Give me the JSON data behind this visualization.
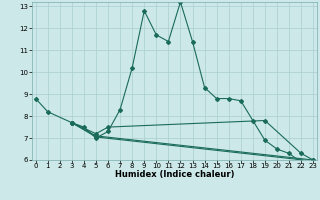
{
  "xlabel": "Humidex (Indice chaleur)",
  "bg_color": "#cce8e8",
  "grid_color": "#aacece",
  "line_color": "#1a6b5a",
  "series1_x": [
    0,
    1,
    3,
    4,
    5,
    6,
    7,
    8,
    9,
    10,
    11,
    12,
    13,
    14,
    15,
    16,
    17,
    18,
    19,
    20,
    21,
    22,
    23
  ],
  "series1_y": [
    8.8,
    8.2,
    7.7,
    7.5,
    7.0,
    7.3,
    8.3,
    10.2,
    12.8,
    11.7,
    11.4,
    13.2,
    11.4,
    9.3,
    8.8,
    8.8,
    8.7,
    7.8,
    6.9,
    6.5,
    6.3,
    5.9,
    5.9
  ],
  "series2_x": [
    3,
    5,
    6,
    19,
    22,
    23
  ],
  "series2_y": [
    7.7,
    7.2,
    7.5,
    7.8,
    6.3,
    6.0
  ],
  "series3_x": [
    3,
    5,
    23
  ],
  "series3_y": [
    7.7,
    7.1,
    6.0
  ],
  "series4_x": [
    3,
    5,
    23
  ],
  "series4_y": [
    7.7,
    7.05,
    5.95
  ],
  "xlim": [
    0,
    23
  ],
  "ylim": [
    6,
    13.2
  ],
  "yticks": [
    6,
    7,
    8,
    9,
    10,
    11,
    12,
    13
  ],
  "xticks": [
    0,
    1,
    2,
    3,
    4,
    5,
    6,
    7,
    8,
    9,
    10,
    11,
    12,
    13,
    14,
    15,
    16,
    17,
    18,
    19,
    20,
    21,
    22,
    23
  ],
  "xlabel_fontsize": 6.0,
  "tick_fontsize": 5.0
}
